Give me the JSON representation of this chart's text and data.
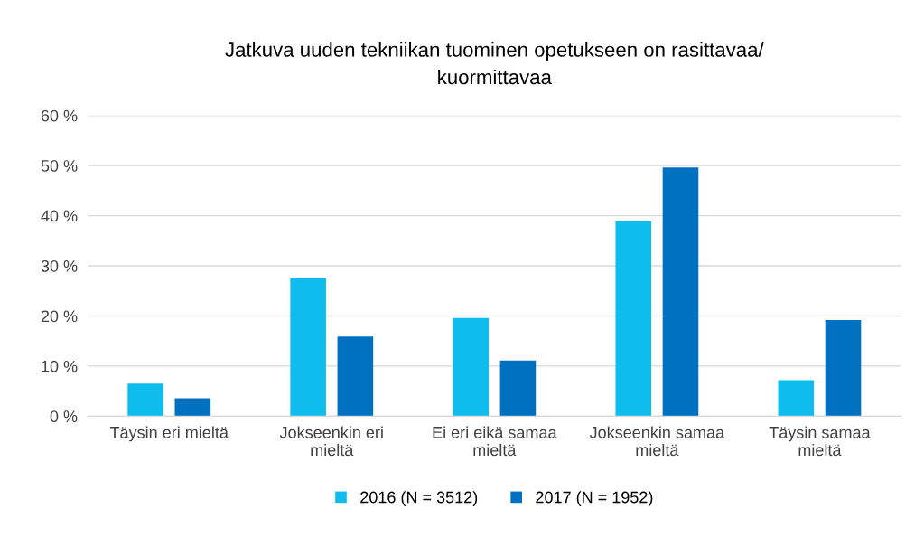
{
  "chart_data": {
    "type": "bar",
    "title": "Jatkuva uuden tekniikan tuominen opetukseen on rasittavaa/\nkuormittavaa",
    "categories": [
      "Täysin eri mieltä",
      "Jokseenkin eri\nmieltä",
      "Ei eri eikä samaa\nmieltä",
      "Jokseenkin samaa\nmieltä",
      "Täysin samaa\nmieltä"
    ],
    "series": [
      {
        "name": "2016 (N = 3512)",
        "color": "#0fbcee",
        "values": [
          6.5,
          27.5,
          19.6,
          38.9,
          7.2
        ]
      },
      {
        "name": "2017 (N = 1952)",
        "color": "#0070c0",
        "values": [
          3.6,
          15.9,
          11.1,
          49.6,
          19.2
        ]
      }
    ],
    "ylim": [
      0,
      60
    ],
    "yticks": [
      {
        "value": 0,
        "label": "0 %"
      },
      {
        "value": 10,
        "label": "10 %"
      },
      {
        "value": 20,
        "label": "20 %"
      },
      {
        "value": 30,
        "label": "30 %"
      },
      {
        "value": 40,
        "label": "40 %"
      },
      {
        "value": 50,
        "label": "50 %"
      },
      {
        "value": 60,
        "label": "60 %"
      }
    ],
    "grid": "y",
    "legend": "bottom"
  }
}
